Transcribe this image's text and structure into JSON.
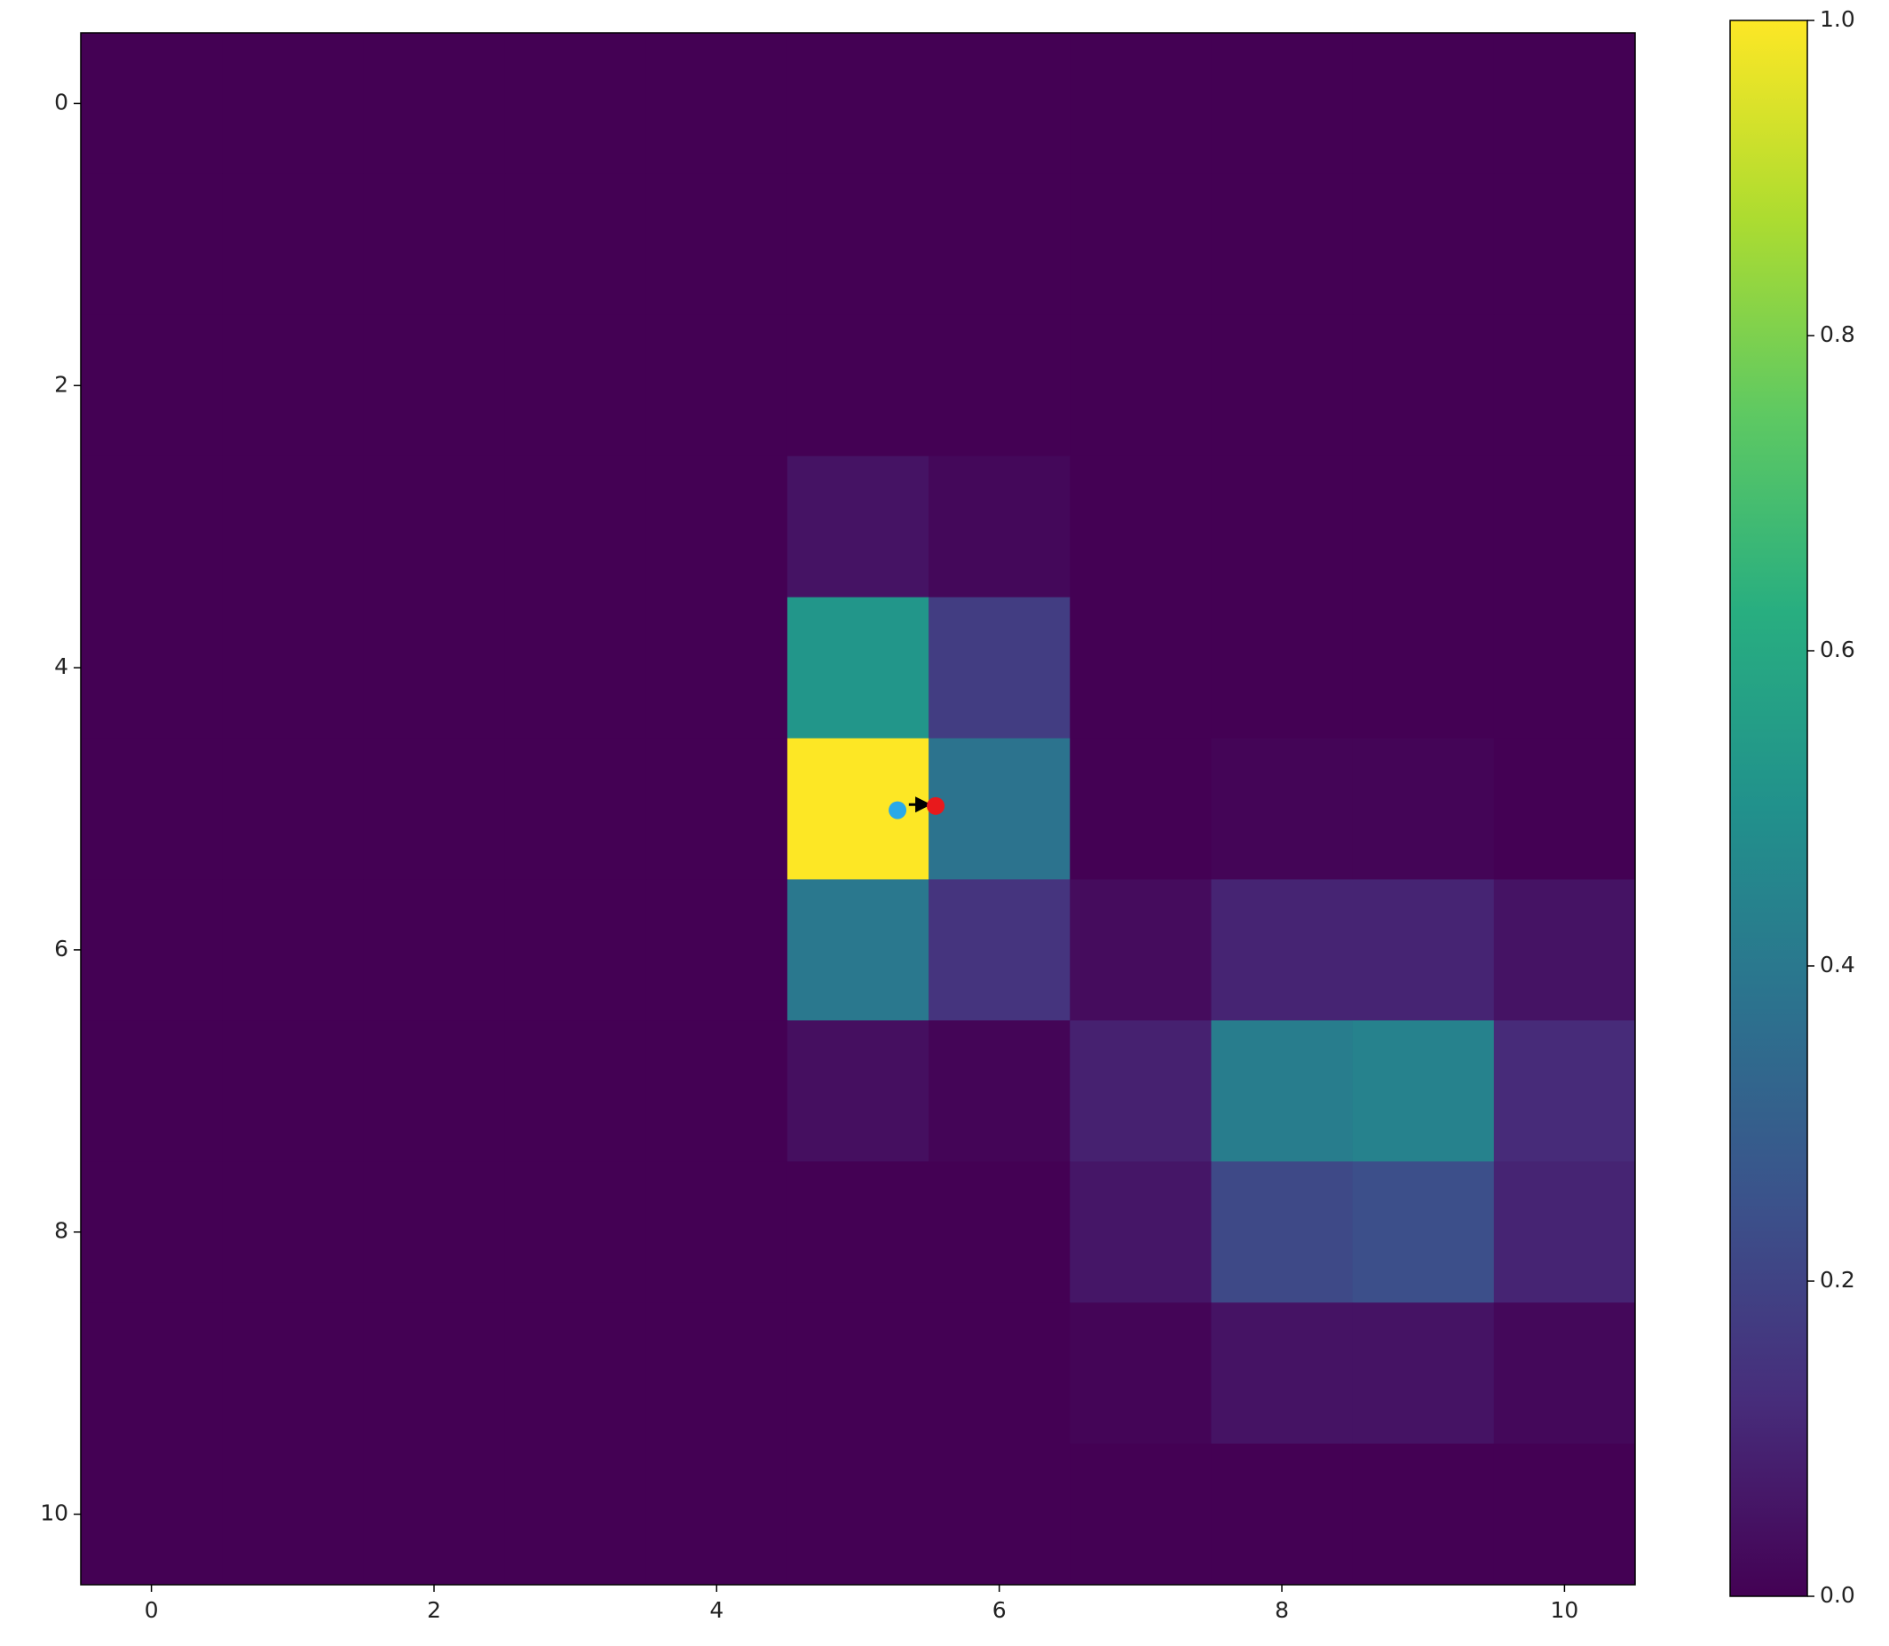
{
  "chart_data": {
    "type": "heatmap",
    "colormap": "viridis",
    "x": [
      0,
      1,
      2,
      3,
      4,
      5,
      6,
      7,
      8,
      9,
      10
    ],
    "y": [
      0,
      1,
      2,
      3,
      4,
      5,
      6,
      7,
      8,
      9,
      10
    ],
    "z": [
      [
        0,
        0,
        0,
        0,
        0,
        0,
        0,
        0,
        0,
        0,
        0
      ],
      [
        0,
        0,
        0,
        0,
        0,
        0,
        0,
        0,
        0,
        0,
        0
      ],
      [
        0,
        0,
        0,
        0,
        0,
        0,
        0,
        0,
        0,
        0,
        0
      ],
      [
        0,
        0,
        0,
        0,
        0,
        0.05,
        0.02,
        0,
        0,
        0,
        0
      ],
      [
        0,
        0,
        0,
        0,
        0,
        0.52,
        0.18,
        0,
        0,
        0,
        0
      ],
      [
        0,
        0,
        0,
        0,
        0,
        1.0,
        0.38,
        0,
        0.01,
        0.01,
        0
      ],
      [
        0,
        0,
        0,
        0,
        0,
        0.4,
        0.15,
        0.03,
        0.1,
        0.1,
        0.05
      ],
      [
        0,
        0,
        0,
        0,
        0,
        0.04,
        0.01,
        0.09,
        0.42,
        0.44,
        0.12
      ],
      [
        0,
        0,
        0,
        0,
        0,
        0,
        0,
        0.06,
        0.22,
        0.24,
        0.1
      ],
      [
        0,
        0,
        0,
        0,
        0,
        0,
        0,
        0.01,
        0.05,
        0.05,
        0.02
      ],
      [
        0,
        0,
        0,
        0,
        0,
        0,
        0,
        0,
        0,
        0,
        0
      ]
    ],
    "xlim": [
      -0.5,
      10.5
    ],
    "ylim": [
      10.5,
      -0.5
    ],
    "xticks": [
      0,
      2,
      4,
      6,
      8,
      10
    ],
    "yticks": [
      0,
      2,
      4,
      6,
      8,
      10
    ],
    "clim": [
      0,
      1
    ],
    "cticks": [
      {
        "value": 0,
        "label": "0.0"
      },
      0.2,
      0.4,
      0.6,
      0.8,
      {
        "value": 1,
        "label": "1.0"
      }
    ],
    "overlay": [
      {
        "kind": "line",
        "color": "#000000",
        "x": [
          5.36,
          5.5
        ],
        "y": [
          4.97,
          4.97
        ]
      },
      {
        "kind": "point",
        "color": "#e8191c",
        "x": [
          5.55
        ],
        "y": [
          4.98
        ]
      },
      {
        "kind": "point",
        "color": "#29a9e8",
        "x": [
          5.28
        ],
        "y": [
          5.01
        ]
      }
    ]
  }
}
